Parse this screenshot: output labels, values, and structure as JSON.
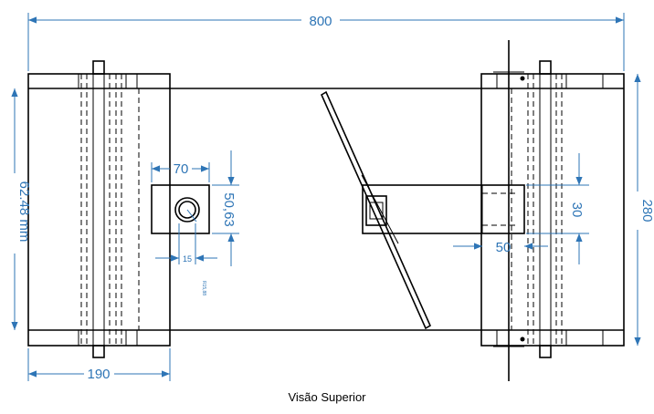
{
  "caption": "Visão Superior",
  "dimensions": {
    "total_length": "800",
    "height_left": "62.48 mm",
    "width_right": "280",
    "roller_width": "190",
    "block_width": "70",
    "block_height": "50,63",
    "hole_dia": "15",
    "hole_radius": "R15,88",
    "arm_height": "30",
    "arm_offset": "50"
  },
  "colors": {
    "dimension": "#2e75b6",
    "line": "#000000"
  }
}
